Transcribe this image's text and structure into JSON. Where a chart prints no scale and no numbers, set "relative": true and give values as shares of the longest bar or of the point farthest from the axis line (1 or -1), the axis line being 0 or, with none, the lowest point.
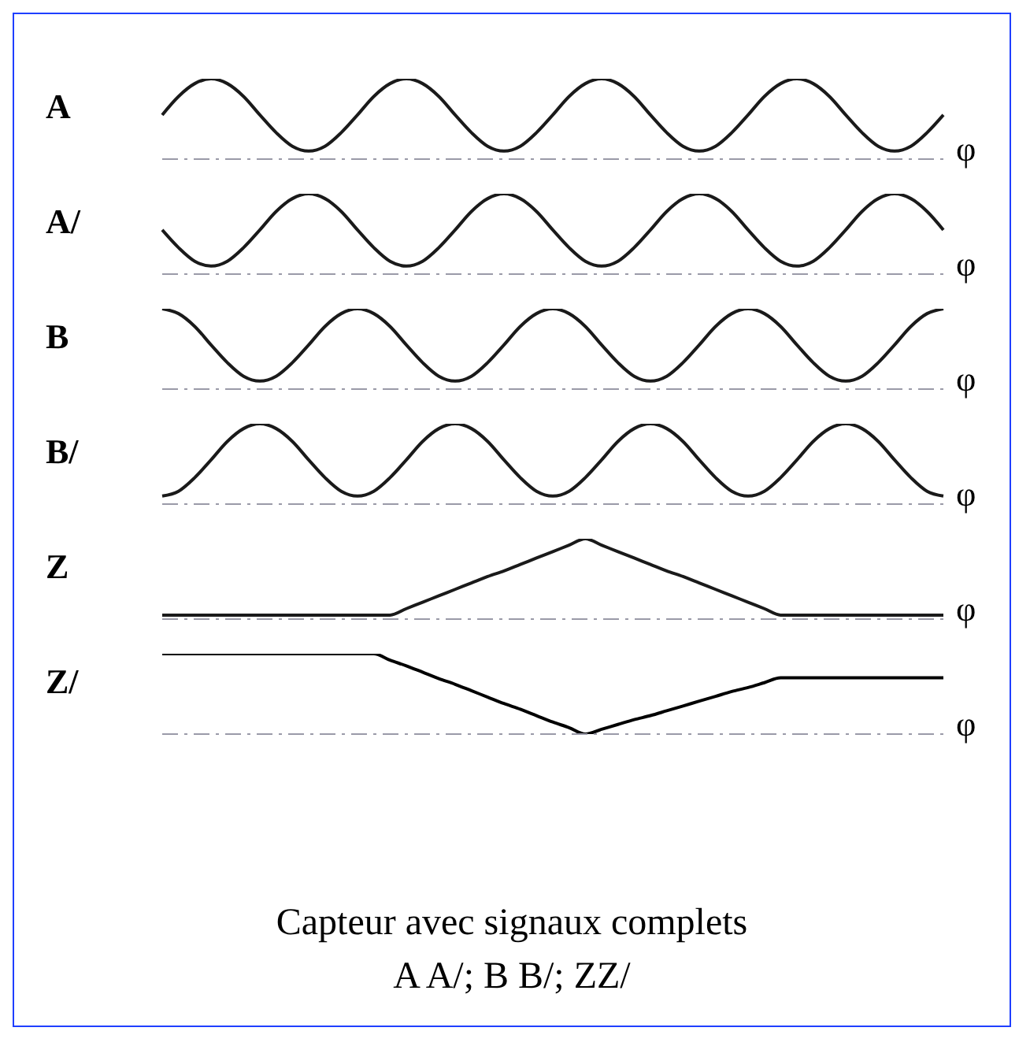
{
  "chart_data": [
    {
      "type": "line",
      "ylabel": "A",
      "xlabel": "φ",
      "relative": true,
      "marker": "none",
      "line_style": "solid",
      "color": "#1a1a1a",
      "categories": [
        null,
        null,
        null,
        null,
        null,
        null,
        null,
        null,
        null,
        null,
        null,
        null,
        null,
        null,
        null,
        null,
        null,
        null,
        null,
        null,
        null,
        null,
        null,
        null,
        null,
        null,
        null,
        null,
        null,
        null,
        null,
        null,
        null,
        null,
        null,
        null,
        null,
        null,
        null,
        null,
        null,
        null,
        null,
        null,
        null,
        null,
        null,
        null,
        null
      ],
      "values": [
        0.55,
        0.78,
        0.94,
        1,
        0.94,
        0.78,
        0.55,
        0.33,
        0.16,
        0.1,
        0.16,
        0.33,
        0.55,
        0.78,
        0.94,
        1,
        0.94,
        0.78,
        0.55,
        0.33,
        0.16,
        0.1,
        0.16,
        0.33,
        0.55,
        0.78,
        0.94,
        1,
        0.94,
        0.78,
        0.55,
        0.33,
        0.16,
        0.1,
        0.16,
        0.33,
        0.55,
        0.78,
        0.94,
        1,
        0.94,
        0.78,
        0.55,
        0.33,
        0.16,
        0.1,
        0.16,
        0.33,
        0.55
      ]
    },
    {
      "type": "line",
      "ylabel": "A/",
      "xlabel": "φ",
      "relative": true,
      "marker": "none",
      "line_style": "solid",
      "color": "#1a1a1a",
      "categories": [
        null,
        null,
        null,
        null,
        null,
        null,
        null,
        null,
        null,
        null,
        null,
        null,
        null,
        null,
        null,
        null,
        null,
        null,
        null,
        null,
        null,
        null,
        null,
        null,
        null,
        null,
        null,
        null,
        null,
        null,
        null,
        null,
        null,
        null,
        null,
        null,
        null,
        null,
        null,
        null,
        null,
        null,
        null,
        null,
        null,
        null,
        null,
        null,
        null
      ],
      "values": [
        0.55,
        0.33,
        0.16,
        0.1,
        0.16,
        0.33,
        0.55,
        0.78,
        0.94,
        1,
        0.94,
        0.78,
        0.55,
        0.33,
        0.16,
        0.1,
        0.16,
        0.33,
        0.55,
        0.78,
        0.94,
        1,
        0.94,
        0.78,
        0.55,
        0.33,
        0.16,
        0.1,
        0.16,
        0.33,
        0.55,
        0.78,
        0.94,
        1,
        0.94,
        0.78,
        0.55,
        0.33,
        0.16,
        0.1,
        0.16,
        0.33,
        0.55,
        0.78,
        0.94,
        1,
        0.94,
        0.78,
        0.55
      ]
    },
    {
      "type": "line",
      "ylabel": "B",
      "xlabel": "φ",
      "relative": true,
      "marker": "none",
      "line_style": "solid",
      "color": "#1a1a1a",
      "categories": [
        null,
        null,
        null,
        null,
        null,
        null,
        null,
        null,
        null,
        null,
        null,
        null,
        null,
        null,
        null,
        null,
        null,
        null,
        null,
        null,
        null,
        null,
        null,
        null,
        null,
        null,
        null,
        null,
        null,
        null,
        null,
        null,
        null,
        null,
        null,
        null,
        null,
        null,
        null,
        null,
        null,
        null,
        null,
        null,
        null,
        null,
        null,
        null,
        null
      ],
      "values": [
        1,
        0.94,
        0.78,
        0.55,
        0.33,
        0.16,
        0.1,
        0.16,
        0.33,
        0.55,
        0.78,
        0.94,
        1,
        0.94,
        0.78,
        0.55,
        0.33,
        0.16,
        0.1,
        0.16,
        0.33,
        0.55,
        0.78,
        0.94,
        1,
        0.94,
        0.78,
        0.55,
        0.33,
        0.16,
        0.1,
        0.16,
        0.33,
        0.55,
        0.78,
        0.94,
        1,
        0.94,
        0.78,
        0.55,
        0.33,
        0.16,
        0.1,
        0.16,
        0.33,
        0.55,
        0.78,
        0.94,
        1
      ]
    },
    {
      "type": "line",
      "ylabel": "B/",
      "xlabel": "φ",
      "relative": true,
      "marker": "none",
      "line_style": "solid",
      "color": "#1a1a1a",
      "categories": [
        null,
        null,
        null,
        null,
        null,
        null,
        null,
        null,
        null,
        null,
        null,
        null,
        null,
        null,
        null,
        null,
        null,
        null,
        null,
        null,
        null,
        null,
        null,
        null,
        null,
        null,
        null,
        null,
        null,
        null,
        null,
        null,
        null,
        null,
        null,
        null,
        null,
        null,
        null,
        null,
        null,
        null,
        null,
        null,
        null,
        null,
        null,
        null,
        null
      ],
      "values": [
        0.1,
        0.16,
        0.33,
        0.55,
        0.78,
        0.94,
        1,
        0.94,
        0.78,
        0.55,
        0.33,
        0.16,
        0.1,
        0.16,
        0.33,
        0.55,
        0.78,
        0.94,
        1,
        0.94,
        0.78,
        0.55,
        0.33,
        0.16,
        0.1,
        0.16,
        0.33,
        0.55,
        0.78,
        0.94,
        1,
        0.94,
        0.78,
        0.55,
        0.33,
        0.16,
        0.1,
        0.16,
        0.33,
        0.55,
        0.78,
        0.94,
        1,
        0.94,
        0.78,
        0.55,
        0.33,
        0.16,
        0.1
      ]
    },
    {
      "type": "line",
      "ylabel": "Z",
      "xlabel": "φ",
      "relative": true,
      "marker": "none",
      "line_style": "solid",
      "color": "#1a1a1a",
      "categories": [
        null,
        null,
        null,
        null,
        null,
        null,
        null,
        null,
        null,
        null,
        null,
        null,
        null,
        null,
        null,
        null,
        null,
        null,
        null,
        null,
        null,
        null,
        null,
        null,
        null,
        null,
        null,
        null,
        null,
        null,
        null,
        null,
        null,
        null,
        null,
        null,
        null,
        null,
        null,
        null,
        null,
        null,
        null,
        null,
        null,
        null,
        null,
        null,
        null
      ],
      "values": [
        0.05,
        0.05,
        0.05,
        0.05,
        0.05,
        0.05,
        0.05,
        0.05,
        0.05,
        0.05,
        0.05,
        0.05,
        0.05,
        0.05,
        0.05,
        0.13,
        0.21,
        0.29,
        0.37,
        0.45,
        0.53,
        0.6,
        0.68,
        0.76,
        0.84,
        0.92,
        1,
        0.92,
        0.84,
        0.76,
        0.68,
        0.6,
        0.53,
        0.45,
        0.37,
        0.29,
        0.21,
        0.13,
        0.05,
        0.05,
        0.05,
        0.05,
        0.05,
        0.05,
        0.05,
        0.05,
        0.05,
        0.05,
        0.05
      ]
    },
    {
      "type": "line",
      "ylabel": "Z/",
      "xlabel": "φ",
      "relative": true,
      "marker": "none",
      "line_style": "solid",
      "color": "#000000",
      "categories": [
        null,
        null,
        null,
        null,
        null,
        null,
        null,
        null,
        null,
        null,
        null,
        null,
        null,
        null,
        null,
        null,
        null,
        null,
        null,
        null,
        null,
        null,
        null,
        null,
        null,
        null,
        null,
        null,
        null,
        null,
        null,
        null,
        null,
        null,
        null,
        null,
        null,
        null,
        null,
        null,
        null,
        null,
        null,
        null,
        null,
        null,
        null,
        null,
        null
      ],
      "values": [
        1,
        1,
        1,
        1,
        1,
        1,
        1,
        1,
        1,
        1,
        1,
        1,
        1,
        1,
        0.92,
        0.85,
        0.77,
        0.69,
        0.62,
        0.54,
        0.46,
        0.38,
        0.31,
        0.23,
        0.15,
        0.08,
        0,
        0.06,
        0.12,
        0.18,
        0.23,
        0.29,
        0.35,
        0.41,
        0.47,
        0.53,
        0.58,
        0.64,
        0.7,
        0.7,
        0.7,
        0.7,
        0.7,
        0.7,
        0.7,
        0.7,
        0.7,
        0.7,
        0.7
      ],
      "annotations": [
        "Capteur avec signaux complets",
        "A A/; B B/; ZZ/"
      ]
    }
  ]
}
